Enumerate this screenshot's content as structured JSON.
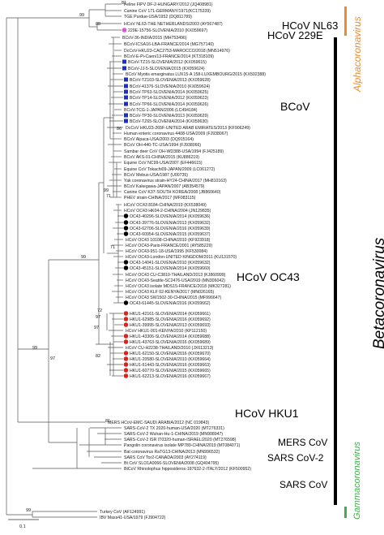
{
  "colors": {
    "alpha": "#f08a2c",
    "beta": "#000000",
    "gamma": "#3dae49",
    "marker_bcov": "#1a2fc8",
    "marker_oc43": "#000000",
    "marker_hku1": "#e0221c",
    "marker_229e": "#e052d6"
  },
  "tips": [
    {
      "label": "Feline FIPV DF-2-HUNGARY/2012 (JQ408981)",
      "marker": null
    },
    {
      "label": "Canine CoV 171-GERMANY/1971(KC175339)",
      "marker": null
    },
    {
      "label": "TGE Purdue-USA/1952 (DQ811789)",
      "marker": null
    },
    {
      "label": "HCoV NL63-THE NETHERLANDS/2003 (AY567487)",
      "marker": null
    },
    {
      "label": "229E-15756-SLOVENIA/2010 (KX059697)",
      "marker": "229e"
    },
    {
      "label": "BCoV-36-INDIA/2015 (MH753496)",
      "marker": null
    },
    {
      "label": "BCoV-ICSA16-LBA-FRANCE/2014 (MG757140)",
      "marker": null
    },
    {
      "label": "DcCoV-HKU23-CAC2753-MAROCCO/2018 (MN514976)",
      "marker": null
    },
    {
      "label": "BCoV-E-Pi-Caen/13-FRANCE/2014 (KT318109)",
      "marker": null
    },
    {
      "label": "BCoV-TZ15-SLOVENIA/2012 (KX059615)",
      "marker": "bcov"
    },
    {
      "label": "BCoV-JJ-5-SLOVENIA/2015 (KX059624)",
      "marker": "bcov"
    },
    {
      "label": "BCoV Myotis emarginatus LUX15-A 158-LUXEMBOURG/2015 (KX502388)",
      "marker": null
    },
    {
      "label": "BCoV-TZ103-SLOVENIA/2013 (KX059628)",
      "marker": "bcov"
    },
    {
      "label": "BCoV-41376-SLOVENIA/2010 (KX059624)",
      "marker": "bcov"
    },
    {
      "label": "BCoV-TP63-SLOVENIA/2014 (KX059625)",
      "marker": "bcov"
    },
    {
      "label": "BCoV-TP14-SLOVENIA/2012 (KX059623)",
      "marker": "bcov"
    },
    {
      "label": "BCoV-TP66-SLOVENIA/2014 (KX059626)",
      "marker": "bcov"
    },
    {
      "label": "BCoV-TCG-1-JAPAN/2006 (LC494184)",
      "marker": null
    },
    {
      "label": "BCoV-TP30-SLOVENIA/2013 (KX059629)",
      "marker": "bcov"
    },
    {
      "label": "BCoV-TZ65-SLOVENIA/2014 (KX059630)",
      "marker": "bcov"
    },
    {
      "label": "DcCoV HKU23-265F-UNITED ARAB EMIRATES/2013 (KF906249)",
      "marker": null
    },
    {
      "label": "Human enteric coronavirus 4408-USA/2009 (FJ938067)",
      "marker": null
    },
    {
      "label": "BCoV Alpaca-USA/2003 (DQ915164)",
      "marker": null
    },
    {
      "label": "BCoV OH-440-TC-USA/1994 (FJ938066)",
      "marker": null
    },
    {
      "label": "Sambar deer CoV OH-WD388-USA/1994 (FJ425189)",
      "marker": null
    },
    {
      "label": "BCoV AKS-01-CHINA/2015 (KU886219)",
      "marker": null
    },
    {
      "label": "Equine CoV NC99-USA/2007 (EF446615)",
      "marker": null
    },
    {
      "label": "Equine CoV Tokachi09-JAPAN/2009 (LC061272)",
      "marker": null
    },
    {
      "label": "BCoV Mebus-USA/1987 (U00735)",
      "marker": null
    },
    {
      "label": "Yak coronavirus strain-HY24-CHINA/2017 (MH810163)",
      "marker": null
    },
    {
      "label": "BCoV Kakegawa-JAPAN/2007 (AB354579)",
      "marker": null
    },
    {
      "label": "Canine CoV K37-SOUTH KOREA/2008 (JB860640)",
      "marker": null
    },
    {
      "label": "PHEV strain-CHINA/2017 (MF083115)",
      "marker": null
    },
    {
      "label": "HCoV OC43 8184-CHINA/2019 (KX538049)",
      "marker": null
    },
    {
      "label": "HCoV OC43 HK04-2-CHINA/2004 (JN129835)",
      "marker": null
    },
    {
      "label": "OC43-40296-SLOVENIA/2014 (KX059636)",
      "marker": "oc43"
    },
    {
      "label": "OC43-39776-SLOVENIA/2013 (KX059632)",
      "marker": "oc43"
    },
    {
      "label": "OC43-62706-SLOVENIA/2016 (KX059639)",
      "marker": "oc43"
    },
    {
      "label": "OC43-60954-SLOVENIA/2015 (KX059637)",
      "marker": "oc43"
    },
    {
      "label": "HCoV OC43 10108-CHINA/2010 (KF923918)",
      "marker": null
    },
    {
      "label": "HCoV OC43-Paris-FRANCE/2001 (AY585229)",
      "marker": null
    },
    {
      "label": "HCoV OC43-951-18-USA/1995 (KF530084)",
      "marker": null
    },
    {
      "label": "HCoV OC43-London-UNITED KINGDOM/2011 (KU131570)",
      "marker": null
    },
    {
      "label": "OC43-14041-SLOVENIA/2010 (KX059632)",
      "marker": "oc43"
    },
    {
      "label": "OC43-45151-SLOVENIA/2014 (KX059660)",
      "marker": "oc43"
    },
    {
      "label": "HCoV OC43 CU-C3810-THAILAND/2013 (KJ860999)",
      "marker": null
    },
    {
      "label": "HCoV OC43-Seattle-SC2476-USA/2019 (MN306042)",
      "marker": null
    },
    {
      "label": "HCoV OC43 isolate MDS15-FRANCE/2018 (MK327281)",
      "marker": null
    },
    {
      "label": "HCoV OC43 KLF 02-KENYA/2017 (MN026165)",
      "marker": null
    },
    {
      "label": "HCoV OC43 SW1502-30-CHINA/2015 (MF996647)",
      "marker": null
    },
    {
      "label": "OC43-61445-SLOVENIA/2016 (KX059662)",
      "marker": "oc43"
    },
    {
      "label": "HKU1-42161-SLOVENIA/2014 (KX059661)",
      "marker": "hku1"
    },
    {
      "label": "HKU1-62985-SLOVENIA/2016 (KX059692)",
      "marker": "hku1"
    },
    {
      "label": "HKU1-39995-SLOVENIA/2013 (KX059693)",
      "marker": "hku1"
    },
    {
      "label": "HCoV HKU1-001-KENYA/2010 (KP112150)",
      "marker": null
    },
    {
      "label": "HKU1-43306-SLOVENIA/2014 (KX059688)",
      "marker": "hku1"
    },
    {
      "label": "HKU1-43763-SLOVENIA/2016 (KX059689)",
      "marker": "hku1"
    },
    {
      "label": "HCoV CU-H2238-THAILAND/2010 (JX613213)",
      "marker": null
    },
    {
      "label": "HKU1-62150-SLOVENIA/2016 (KX059670)",
      "marker": "hku1"
    },
    {
      "label": "HKU1-20580-SLOVENIA/2010 (KX059664)",
      "marker": "hku1"
    },
    {
      "label": "HKU1-61443-SLOVENIA/2016 (KX059663)",
      "marker": "hku1"
    },
    {
      "label": "HKU1-60770-SLOVENIA/2015 (KX059665)",
      "marker": "hku1"
    },
    {
      "label": "HKU1-62213-SLOVENIA/2016 (KX059667)",
      "marker": "hku1"
    },
    {
      "label": "MERS HCoV-EMC-SAUDI ARABIA/2012 (NC 019843)",
      "marker": null
    },
    {
      "label": "SARS-CoV-2 TX 2020-human-USA/2020 (MT276331)",
      "marker": null
    },
    {
      "label": "SARS-CoV-2 Wuhan-Hu-1-CHINA/2019 (MN908947)",
      "marker": null
    },
    {
      "label": "SARS-CoV-2 ISR IT0320-human-ISRAEL/2020 (MT276598)",
      "marker": null
    },
    {
      "label": "Pangolin coronavirus isolate MP789-CHINA/2019 (MT084071)",
      "marker": null
    },
    {
      "label": "Bat coronavirus RaTG13-CHINA/2013 (MN996532)",
      "marker": null
    },
    {
      "label": "SARS CoV Tor2-CANADA/2003 (AY274119)",
      "marker": null
    },
    {
      "label": "Bt CoV SLO1A0066-SLOVENIA/2008 (GQ404795)",
      "marker": null
    },
    {
      "label": "BtCoV Rhinolophus hipposideros-187632-2-ITALY/2012 (KF500952)",
      "marker": null
    },
    {
      "label": "Turkey CoV (AF124991)",
      "marker": null
    },
    {
      "label": "IBV Mass41-USA/1979 (FJ904722)",
      "marker": null
    }
  ],
  "bootstrap_values": [
    "81",
    "88",
    "99",
    "99",
    "86",
    "71",
    "71",
    "99",
    "72",
    "97",
    "97",
    "82",
    "97",
    "99",
    "81",
    "99"
  ],
  "groups": {
    "hcov_nl63": "HCoV NL63",
    "hcov_229e": "HCoV 229E",
    "bcov": "BCoV",
    "hcov_oc43": "HCoV OC43",
    "hcov_hku1": "HCoV HKU1",
    "mers": "MERS CoV",
    "sars2": "SARS CoV-2",
    "sars": "SARS CoV"
  },
  "genera": {
    "alpha": "Alphacoronavirus",
    "beta": "Betacoronavirus",
    "gamma": "Gammacoronavirus"
  },
  "scale_label": "0.1"
}
